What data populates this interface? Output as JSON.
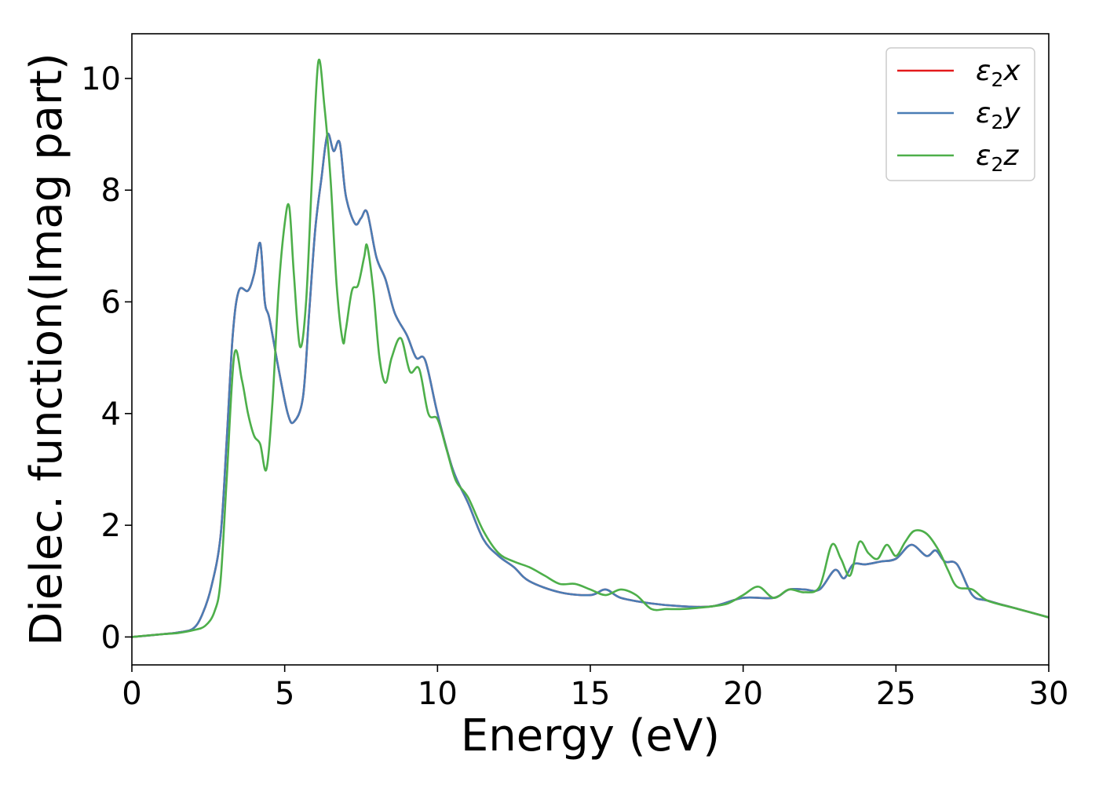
{
  "chart_data": {
    "type": "line",
    "xlabel": "Energy (eV)",
    "ylabel": "Dielec. function(Imag part)",
    "xlim": [
      0,
      30
    ],
    "ylim": [
      -0.5,
      10.8
    ],
    "xticks": [
      0,
      5,
      10,
      15,
      20,
      25,
      30
    ],
    "yticks": [
      0,
      2,
      4,
      6,
      8,
      10
    ],
    "grid": false,
    "legend_position": "top-right",
    "series": [
      {
        "name": "ε₂x",
        "legend_label": {
          "base": "ε",
          "sub": "2",
          "axis": "x"
        },
        "color": "#e41a1c",
        "x": [
          0,
          1,
          1.5,
          2,
          2.3,
          2.6,
          2.9,
          3.1,
          3.3,
          3.5,
          3.8,
          4.0,
          4.2,
          4.35,
          4.5,
          4.8,
          5.1,
          5.3,
          5.6,
          5.8,
          6.0,
          6.2,
          6.4,
          6.6,
          6.8,
          7.0,
          7.3,
          7.5,
          7.7,
          8.0,
          8.3,
          8.6,
          9.0,
          9.3,
          9.6,
          10.0,
          10.5,
          11.0,
          11.5,
          12.0,
          12.5,
          13.0,
          14.0,
          15.0,
          15.5,
          16.0,
          17.0,
          18.0,
          19.0,
          20.0,
          21.0,
          21.5,
          22.0,
          22.5,
          23.0,
          23.3,
          23.6,
          24.0,
          24.5,
          25.0,
          25.5,
          26.0,
          26.3,
          26.6,
          27.0,
          27.5,
          28.0,
          29.0,
          30.0
        ],
        "values": [
          0.0,
          0.05,
          0.08,
          0.15,
          0.4,
          0.9,
          1.8,
          3.5,
          5.4,
          6.2,
          6.2,
          6.5,
          7.05,
          6.0,
          5.7,
          4.8,
          4.0,
          3.85,
          4.3,
          5.8,
          7.3,
          8.2,
          9.0,
          8.7,
          8.85,
          7.9,
          7.4,
          7.5,
          7.6,
          6.8,
          6.4,
          5.8,
          5.4,
          5.0,
          4.95,
          4.0,
          3.0,
          2.4,
          1.75,
          1.45,
          1.25,
          1.0,
          0.8,
          0.75,
          0.85,
          0.7,
          0.6,
          0.55,
          0.55,
          0.7,
          0.7,
          0.85,
          0.85,
          0.85,
          1.2,
          1.05,
          1.3,
          1.3,
          1.35,
          1.4,
          1.65,
          1.45,
          1.55,
          1.35,
          1.3,
          0.75,
          0.65,
          0.5,
          0.35
        ]
      },
      {
        "name": "ε₂y",
        "legend_label": {
          "base": "ε",
          "sub": "2",
          "axis": "y"
        },
        "color": "#4a7db5",
        "x": [
          0,
          1,
          1.5,
          2,
          2.3,
          2.6,
          2.9,
          3.1,
          3.3,
          3.5,
          3.8,
          4.0,
          4.2,
          4.35,
          4.5,
          4.8,
          5.1,
          5.3,
          5.6,
          5.8,
          6.0,
          6.2,
          6.4,
          6.6,
          6.8,
          7.0,
          7.3,
          7.5,
          7.7,
          8.0,
          8.3,
          8.6,
          9.0,
          9.3,
          9.6,
          10.0,
          10.5,
          11.0,
          11.5,
          12.0,
          12.5,
          13.0,
          14.0,
          15.0,
          15.5,
          16.0,
          17.0,
          18.0,
          19.0,
          20.0,
          21.0,
          21.5,
          22.0,
          22.5,
          23.0,
          23.3,
          23.6,
          24.0,
          24.5,
          25.0,
          25.5,
          26.0,
          26.3,
          26.6,
          27.0,
          27.5,
          28.0,
          29.0,
          30.0
        ],
        "values": [
          0.0,
          0.05,
          0.08,
          0.15,
          0.4,
          0.9,
          1.8,
          3.5,
          5.4,
          6.2,
          6.2,
          6.5,
          7.05,
          6.0,
          5.7,
          4.8,
          4.0,
          3.85,
          4.3,
          5.8,
          7.3,
          8.2,
          9.0,
          8.7,
          8.85,
          7.9,
          7.4,
          7.5,
          7.6,
          6.8,
          6.4,
          5.8,
          5.4,
          5.0,
          4.95,
          4.0,
          3.0,
          2.4,
          1.75,
          1.45,
          1.25,
          1.0,
          0.8,
          0.75,
          0.85,
          0.7,
          0.6,
          0.55,
          0.55,
          0.7,
          0.7,
          0.85,
          0.85,
          0.85,
          1.2,
          1.05,
          1.3,
          1.3,
          1.35,
          1.4,
          1.65,
          1.45,
          1.55,
          1.35,
          1.3,
          0.75,
          0.65,
          0.5,
          0.35
        ]
      },
      {
        "name": "ε₂z",
        "legend_label": {
          "base": "ε",
          "sub": "2",
          "axis": "z"
        },
        "color": "#4daf4a",
        "x": [
          0,
          1,
          1.5,
          2,
          2.4,
          2.7,
          2.9,
          3.1,
          3.35,
          3.6,
          3.8,
          4.0,
          4.2,
          4.4,
          4.6,
          4.8,
          5.0,
          5.15,
          5.3,
          5.5,
          5.7,
          5.9,
          6.1,
          6.3,
          6.5,
          6.7,
          6.9,
          7.0,
          7.2,
          7.4,
          7.6,
          7.7,
          7.9,
          8.1,
          8.3,
          8.5,
          8.8,
          9.1,
          9.4,
          9.7,
          10.0,
          10.3,
          10.6,
          11.0,
          11.5,
          12.0,
          12.5,
          13.0,
          13.5,
          14.0,
          14.5,
          15.0,
          15.5,
          16.0,
          16.5,
          17.0,
          17.5,
          18.0,
          18.5,
          19.0,
          19.5,
          20.0,
          20.5,
          21.0,
          21.5,
          22.0,
          22.5,
          22.9,
          23.2,
          23.5,
          23.8,
          24.1,
          24.4,
          24.7,
          25.0,
          25.3,
          25.6,
          26.0,
          26.4,
          26.7,
          27.0,
          27.5,
          28.0,
          29.0,
          30.0
        ],
        "values": [
          0.0,
          0.05,
          0.07,
          0.12,
          0.2,
          0.45,
          1.0,
          2.8,
          5.05,
          4.6,
          4.0,
          3.6,
          3.45,
          3.0,
          4.2,
          6.2,
          7.4,
          7.7,
          6.5,
          5.2,
          6.0,
          8.3,
          10.3,
          9.5,
          8.2,
          6.3,
          5.3,
          5.5,
          6.2,
          6.3,
          6.8,
          7.0,
          6.2,
          5.0,
          4.55,
          5.0,
          5.35,
          4.75,
          4.8,
          4.0,
          3.9,
          3.35,
          2.8,
          2.5,
          1.9,
          1.5,
          1.35,
          1.25,
          1.1,
          0.95,
          0.95,
          0.85,
          0.75,
          0.85,
          0.75,
          0.5,
          0.5,
          0.5,
          0.52,
          0.55,
          0.6,
          0.75,
          0.9,
          0.7,
          0.85,
          0.8,
          0.9,
          1.65,
          1.4,
          1.1,
          1.7,
          1.5,
          1.4,
          1.65,
          1.45,
          1.7,
          1.9,
          1.85,
          1.55,
          1.2,
          0.9,
          0.85,
          0.65,
          0.5,
          0.35
        ]
      }
    ]
  }
}
